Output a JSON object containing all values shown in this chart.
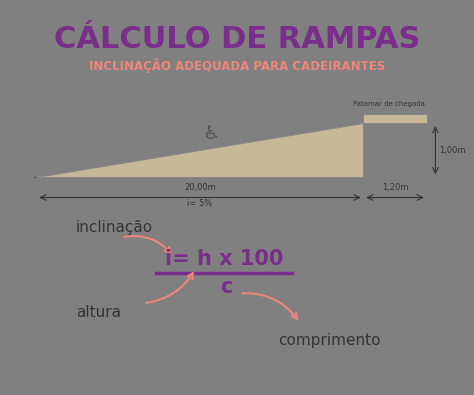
{
  "bg_outer": "#808080",
  "bg_inner": "#ffffff",
  "title": "CÁLCULO DE RAMPAS",
  "subtitle": "INCLINAÇÃO ADEQUADA PARA CADEIRANTES",
  "title_color": "#7b2d8b",
  "subtitle_color": "#f0857a",
  "ramp_fill": "#c8b89a",
  "ramp_edge": "#888888",
  "formula_i": "i= h x 100",
  "formula_c": "c",
  "formula_color": "#7b2d8b",
  "formula_pink": "#f0857a",
  "label_inclinacao": "inclinação",
  "label_altura": "altura",
  "label_comprimento": "comprimento",
  "label_color": "#333333",
  "dim_20m": "20,00m",
  "dim_1m": "1,00m",
  "dim_120m": "1,20m",
  "incl_label": "i= 5%",
  "patamar": "Patamar de chegada"
}
